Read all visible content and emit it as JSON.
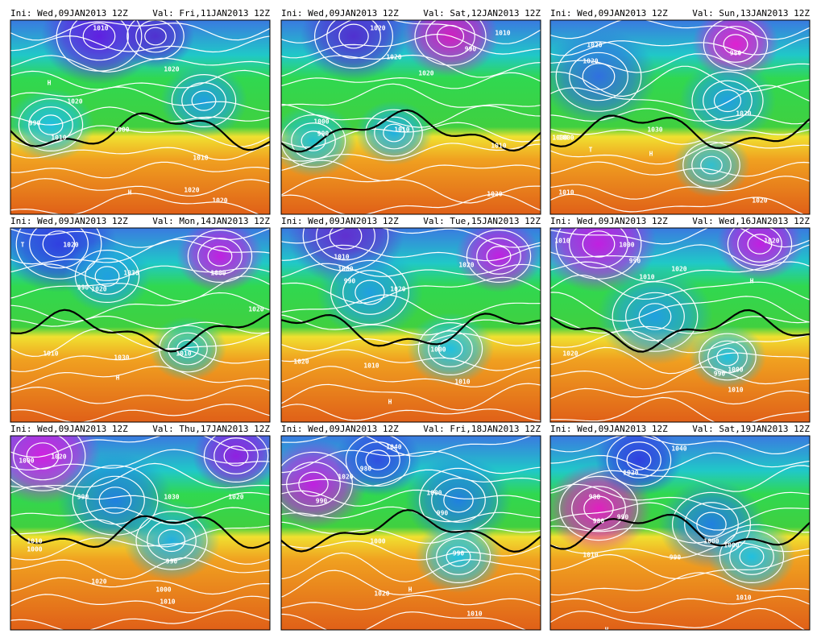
{
  "panels": [
    {
      "ini": "Ini: Wed,09JAN2013 12Z",
      "val": "Val: Fri,11JAN2013 12Z",
      "labels": [
        "1010",
        "1020",
        "990",
        "1000",
        "1020",
        "1010",
        "1020",
        "1020",
        "H",
        "H",
        "1010"
      ]
    },
    {
      "ini": "Ini: Wed,09JAN2013 12Z",
      "val": "Val: Sat,12JAN2013 12Z",
      "labels": [
        "1020",
        "990",
        "1020",
        "1000",
        "990",
        "1010",
        "1020",
        "1010",
        "1020",
        "1010"
      ]
    },
    {
      "ini": "Ini: Wed,09JAN2013 12Z",
      "val": "Val: Sun,13JAN2013 12Z",
      "labels": [
        "1020",
        "980",
        "1000",
        "1020",
        "1000",
        "1030",
        "H",
        "1010",
        "1020",
        "1020",
        "T"
      ]
    },
    {
      "ini": "Ini: Wed,09JAN2013 12Z",
      "val": "Val: Mon,14JAN2013 12Z",
      "labels": [
        "1020",
        "1030",
        "1000",
        "990",
        "1020",
        "1010",
        "1030",
        "H",
        "1010",
        "1020",
        "T"
      ]
    },
    {
      "ini": "Ini: Wed,09JAN2013 12Z",
      "val": "Val: Tue,15JAN2013 12Z",
      "labels": [
        "1010",
        "1000",
        "990",
        "1020",
        "1010",
        "1020",
        "1000",
        "H",
        "1010",
        "1020"
      ]
    },
    {
      "ini": "Ini: Wed,09JAN2013 12Z",
      "val": "Val: Wed,16JAN2013 12Z",
      "labels": [
        "1010",
        "1000",
        "990",
        "1010",
        "1020",
        "1020",
        "1000",
        "990",
        "1010",
        "1020",
        "H"
      ]
    },
    {
      "ini": "Ini: Wed,09JAN2013 12Z",
      "val": "Val: Thu,17JAN2013 12Z",
      "labels": [
        "1000",
        "1020",
        "990",
        "1030",
        "1020",
        "1010",
        "1000",
        "990",
        "1020",
        "1010",
        "1000"
      ]
    },
    {
      "ini": "Ini: Wed,09JAN2013 12Z",
      "val": "Val: Fri,18JAN2013 12Z",
      "labels": [
        "1040",
        "1020",
        "990",
        "980",
        "1000",
        "1000",
        "990",
        "990",
        "1020",
        "1010",
        "H"
      ]
    },
    {
      "ini": "Ini: Wed,09JAN2013 12Z",
      "val": "Val: Sat,19JAN2013 12Z",
      "labels": [
        "1040",
        "1020",
        "980",
        "980",
        "990",
        "1000",
        "1000",
        "990",
        "1010",
        "1010",
        "H"
      ]
    }
  ]
}
